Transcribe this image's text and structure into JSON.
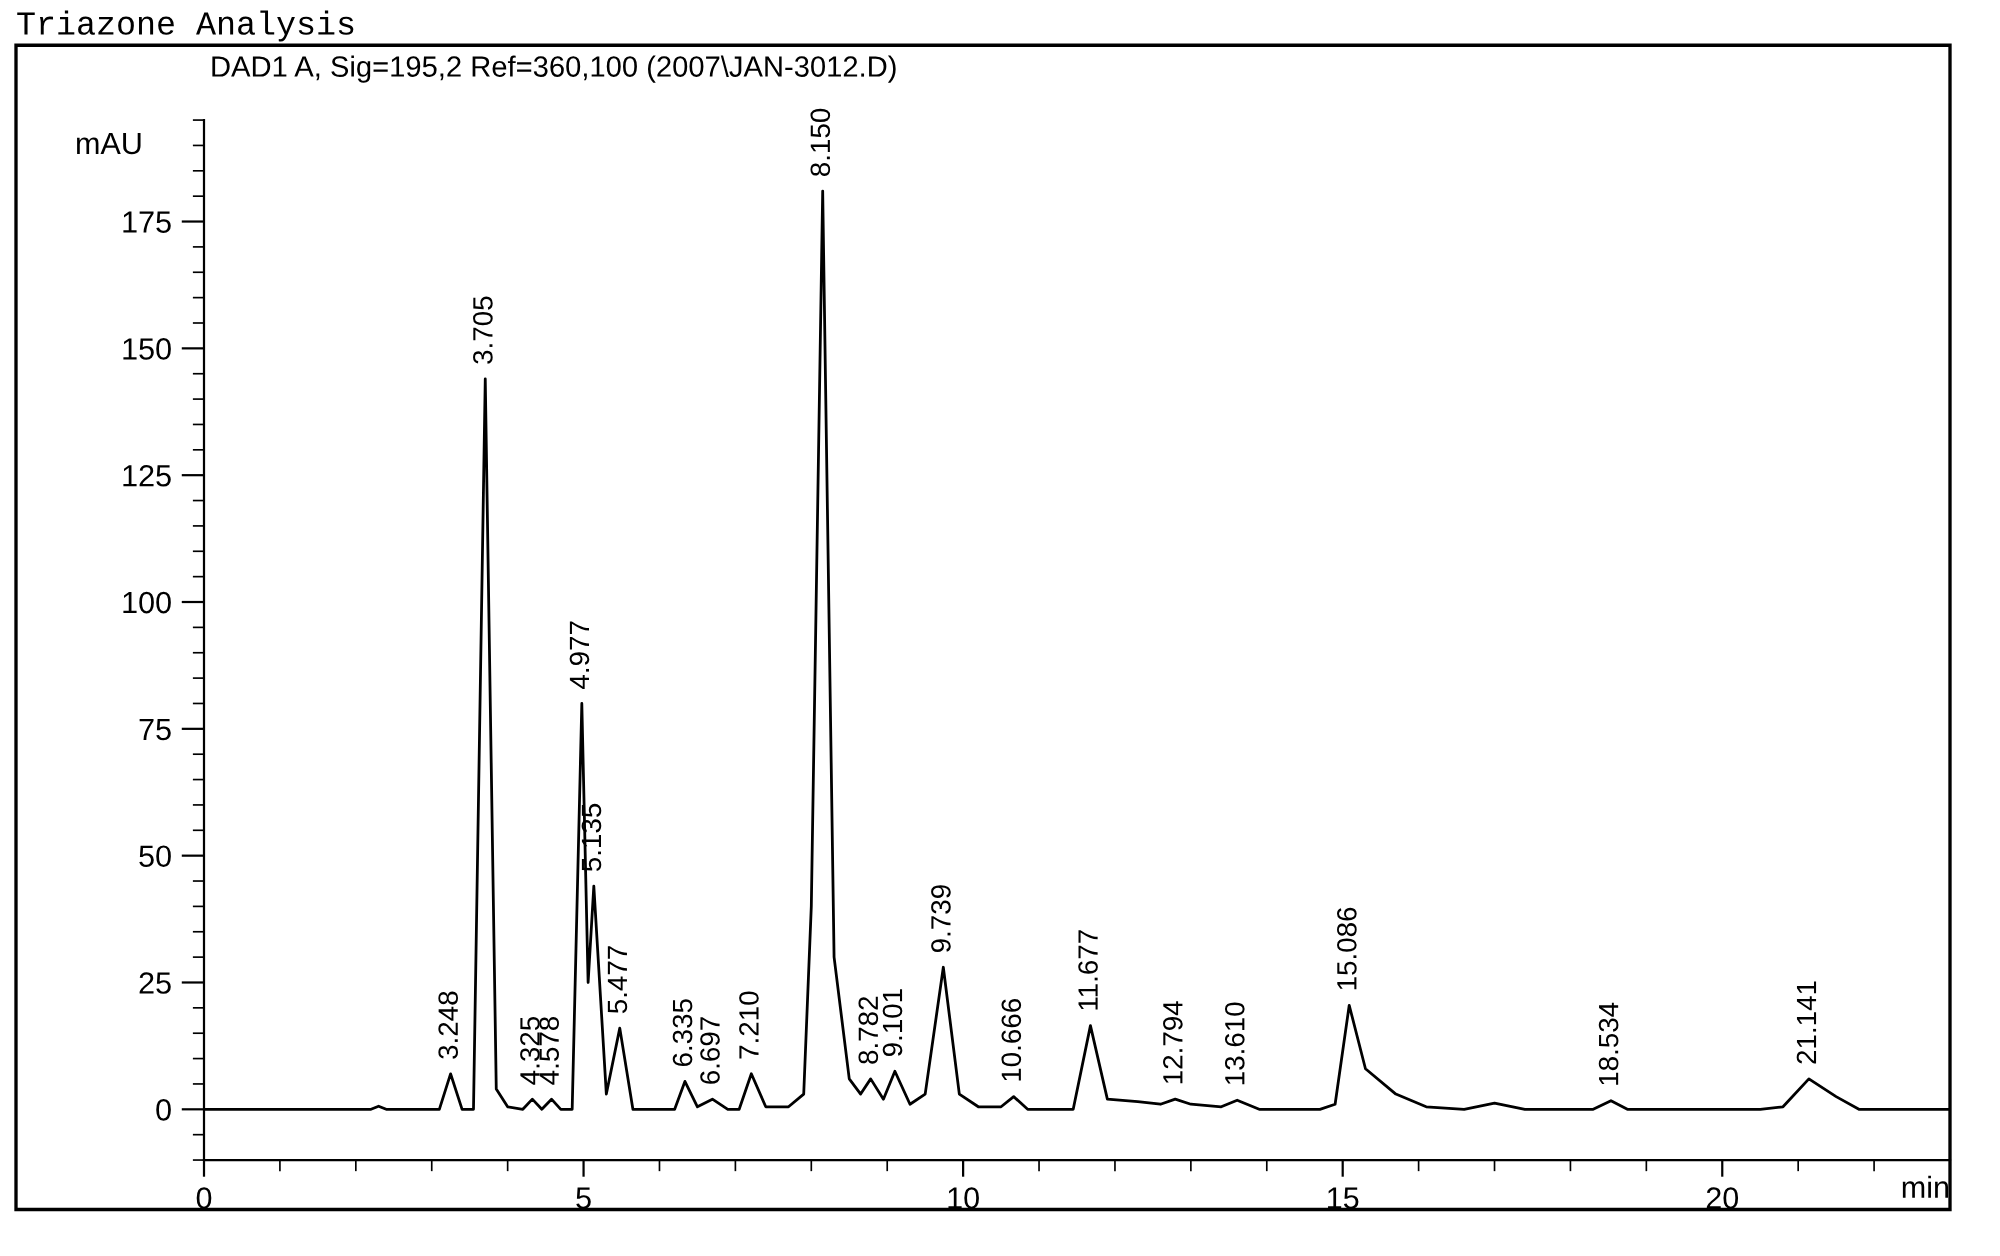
{
  "chart_data": {
    "type": "line",
    "title": "Triazone Analysis",
    "subtitle": "DAD1 A, Sig=195,2 Ref=360,100 (2007\\JAN-3012.D)",
    "xlabel": "min",
    "ylabel": "mAU",
    "xlim": [
      0,
      23
    ],
    "xticks": [
      0,
      5,
      10,
      15,
      20
    ],
    "ylim": [
      -10,
      195
    ],
    "yticks": [
      0,
      25,
      50,
      75,
      100,
      125,
      150,
      175
    ],
    "grid": false,
    "legend": false,
    "marker": "none",
    "line_style": "solid",
    "series": [
      {
        "color": "#000000",
        "x": [
          0,
          2.2,
          2.3,
          2.4,
          3.1,
          3.248,
          3.4,
          3.55,
          3.705,
          3.85,
          4.0,
          4.2,
          4.325,
          4.45,
          4.578,
          4.7,
          4.85,
          4.977,
          5.06,
          5.135,
          5.3,
          5.477,
          5.65,
          6.2,
          6.335,
          6.5,
          6.697,
          6.9,
          7.05,
          7.21,
          7.4,
          7.7,
          7.9,
          8.0,
          8.15,
          8.3,
          8.5,
          8.65,
          8.782,
          8.95,
          9.101,
          9.3,
          9.5,
          9.739,
          9.95,
          10.2,
          10.5,
          10.666,
          10.85,
          11.45,
          11.677,
          11.9,
          12.3,
          12.6,
          12.794,
          13.0,
          13.4,
          13.61,
          13.9,
          14.7,
          14.9,
          15.086,
          15.3,
          15.7,
          16.1,
          16.6,
          17.0,
          17.4,
          18.3,
          18.534,
          18.75,
          20.5,
          20.8,
          21.141,
          21.5,
          21.8,
          23
        ],
        "values": [
          0,
          0,
          0.6,
          0,
          0,
          7,
          0,
          0,
          144,
          4,
          0.5,
          0,
          2,
          0,
          2,
          0,
          0,
          80,
          25,
          44,
          3,
          16,
          0,
          0,
          5.5,
          0.5,
          2,
          0,
          0,
          7,
          0.5,
          0.5,
          3,
          40,
          181,
          30,
          6,
          3,
          6,
          2,
          7.5,
          1,
          3,
          28,
          3,
          0.5,
          0.5,
          2.5,
          0,
          0,
          16.5,
          2,
          1.5,
          1,
          2,
          1,
          0.5,
          1.8,
          0,
          0,
          1,
          20.5,
          8,
          3,
          0.5,
          0,
          1.2,
          0,
          0,
          1.7,
          0,
          0,
          0.5,
          6,
          2.5,
          0,
          0
        ]
      }
    ],
    "annotations": [
      {
        "text": "3.248",
        "x": 3.248,
        "y": 7
      },
      {
        "text": "3.705",
        "x": 3.705,
        "y": 144
      },
      {
        "text": "4.325",
        "x": 4.325,
        "y": 2
      },
      {
        "text": "4.578",
        "x": 4.578,
        "y": 2
      },
      {
        "text": "4.977",
        "x": 4.977,
        "y": 80
      },
      {
        "text": "5.135",
        "x": 5.135,
        "y": 44
      },
      {
        "text": "5.477",
        "x": 5.477,
        "y": 16
      },
      {
        "text": "6.335",
        "x": 6.335,
        "y": 5.5
      },
      {
        "text": "6.697",
        "x": 6.697,
        "y": 2
      },
      {
        "text": "7.210",
        "x": 7.21,
        "y": 7
      },
      {
        "text": "8.150",
        "x": 8.15,
        "y": 181
      },
      {
        "text": "8.782",
        "x": 8.782,
        "y": 6
      },
      {
        "text": "9.101",
        "x": 9.101,
        "y": 7.5
      },
      {
        "text": "9.739",
        "x": 9.739,
        "y": 28
      },
      {
        "text": "10.666",
        "x": 10.666,
        "y": 2.5
      },
      {
        "text": "11.677",
        "x": 11.677,
        "y": 16.5
      },
      {
        "text": "12.794",
        "x": 12.794,
        "y": 2
      },
      {
        "text": "13.610",
        "x": 13.61,
        "y": 1.8
      },
      {
        "text": "15.086",
        "x": 15.086,
        "y": 20.5
      },
      {
        "text": "18.534",
        "x": 18.534,
        "y": 1.7
      },
      {
        "text": "21.141",
        "x": 21.141,
        "y": 6
      }
    ]
  }
}
